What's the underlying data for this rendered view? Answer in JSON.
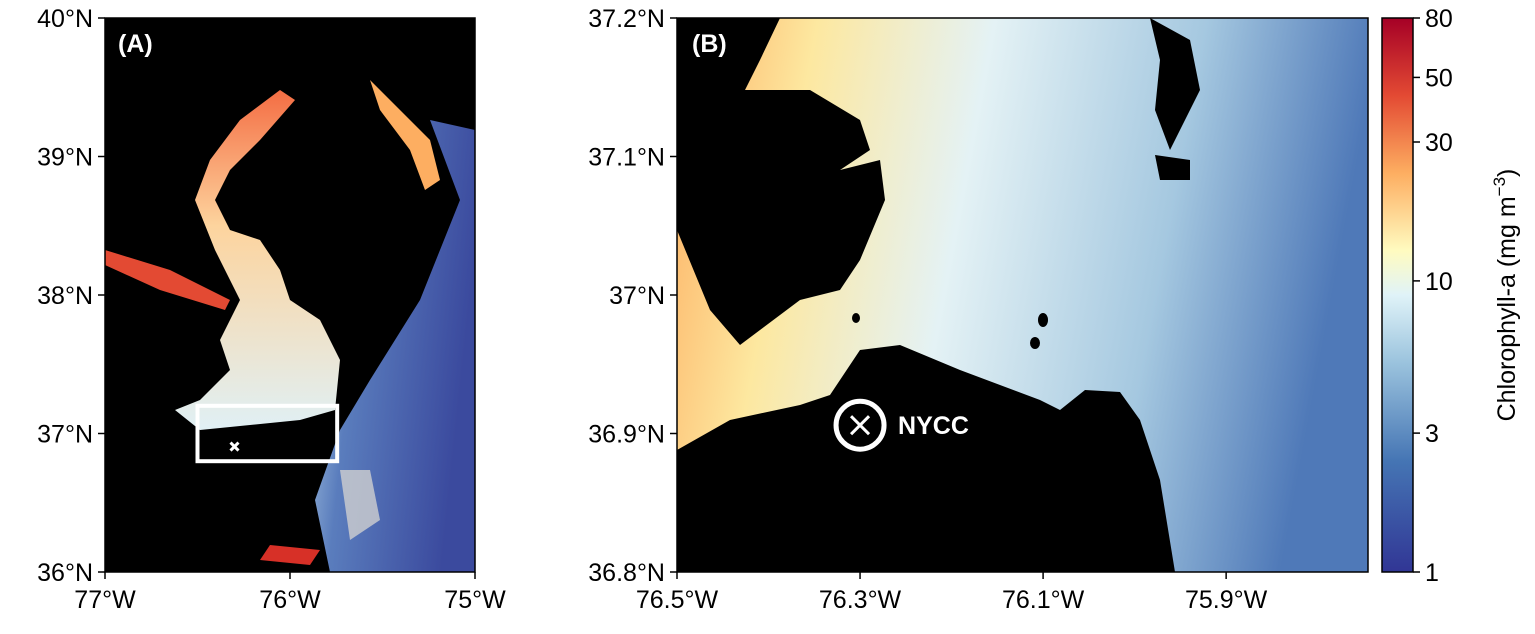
{
  "panels": [
    {
      "label": "(A)",
      "xlim": [
        -77,
        -75
      ],
      "ylim": [
        36,
        40
      ],
      "xticks": [
        {
          "value": -77,
          "label": "77°W"
        },
        {
          "value": -76,
          "label": "76°W"
        },
        {
          "value": -75,
          "label": "75°W"
        }
      ],
      "yticks": [
        {
          "value": 36,
          "label": "36°N"
        },
        {
          "value": 37,
          "label": "37°N"
        },
        {
          "value": 38,
          "label": "38°N"
        },
        {
          "value": 39,
          "label": "39°N"
        },
        {
          "value": 40,
          "label": "40°N"
        }
      ]
    },
    {
      "label": "(B)",
      "xlim": [
        -76.5,
        -75.745
      ],
      "ylim": [
        36.8,
        37.2
      ],
      "xticks": [
        {
          "value": -76.5,
          "label": "76.5°W"
        },
        {
          "value": -76.3,
          "label": "76.3°W"
        },
        {
          "value": -76.1,
          "label": "76.1°W"
        },
        {
          "value": -75.9,
          "label": "75.9°W"
        }
      ],
      "yticks": [
        {
          "value": 36.8,
          "label": "36.8°N"
        },
        {
          "value": 36.9,
          "label": "36.9°N"
        },
        {
          "value": 37,
          "label": "37°N"
        },
        {
          "value": 37.1,
          "label": "37.1°N"
        },
        {
          "value": 37.2,
          "label": "37.2°N"
        }
      ]
    }
  ],
  "site": {
    "label": "NYCC",
    "lon": -76.3,
    "lat": 36.906
  },
  "colorbar": {
    "label": "Chlorophyll-a (mg m",
    "label_exponent": "−3",
    "label_end": ")",
    "scale": "log",
    "lim": [
      1,
      80
    ],
    "ticks": [
      1,
      3,
      10,
      30,
      50,
      80
    ]
  }
}
